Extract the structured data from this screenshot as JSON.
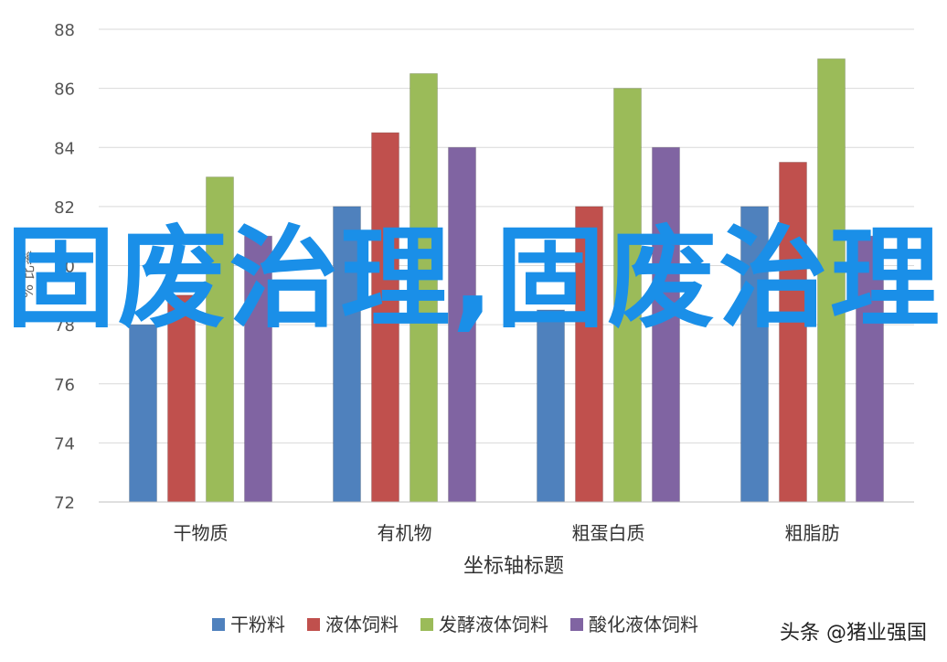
{
  "chart_data": {
    "type": "bar",
    "title": "",
    "xlabel": "坐标轴标题",
    "ylabel": "% 比率",
    "ylim": [
      72,
      88
    ],
    "yticks": [
      72,
      74,
      76,
      78,
      80,
      82,
      84,
      86,
      88
    ],
    "categories": [
      "干物质",
      "有机物",
      "粗蛋白质",
      "粗脂肪"
    ],
    "series": [
      {
        "name": "干粉料",
        "color": "#4f81bd",
        "values": [
          78,
          82,
          78.5,
          82
        ]
      },
      {
        "name": "液体饲料",
        "color": "#c0504d",
        "values": [
          79,
          84.5,
          82,
          83.5
        ]
      },
      {
        "name": "发酵液体饲料",
        "color": "#9bbb59",
        "values": [
          83,
          86.5,
          86,
          87
        ]
      },
      {
        "name": "酸化液体饲料",
        "color": "#8064a2",
        "values": [
          81,
          84,
          84,
          81
        ]
      }
    ],
    "grid": true,
    "legend_position": "bottom"
  },
  "overlay_text": "固废治理,固废治理",
  "watermark": "头条 @猪业强国"
}
